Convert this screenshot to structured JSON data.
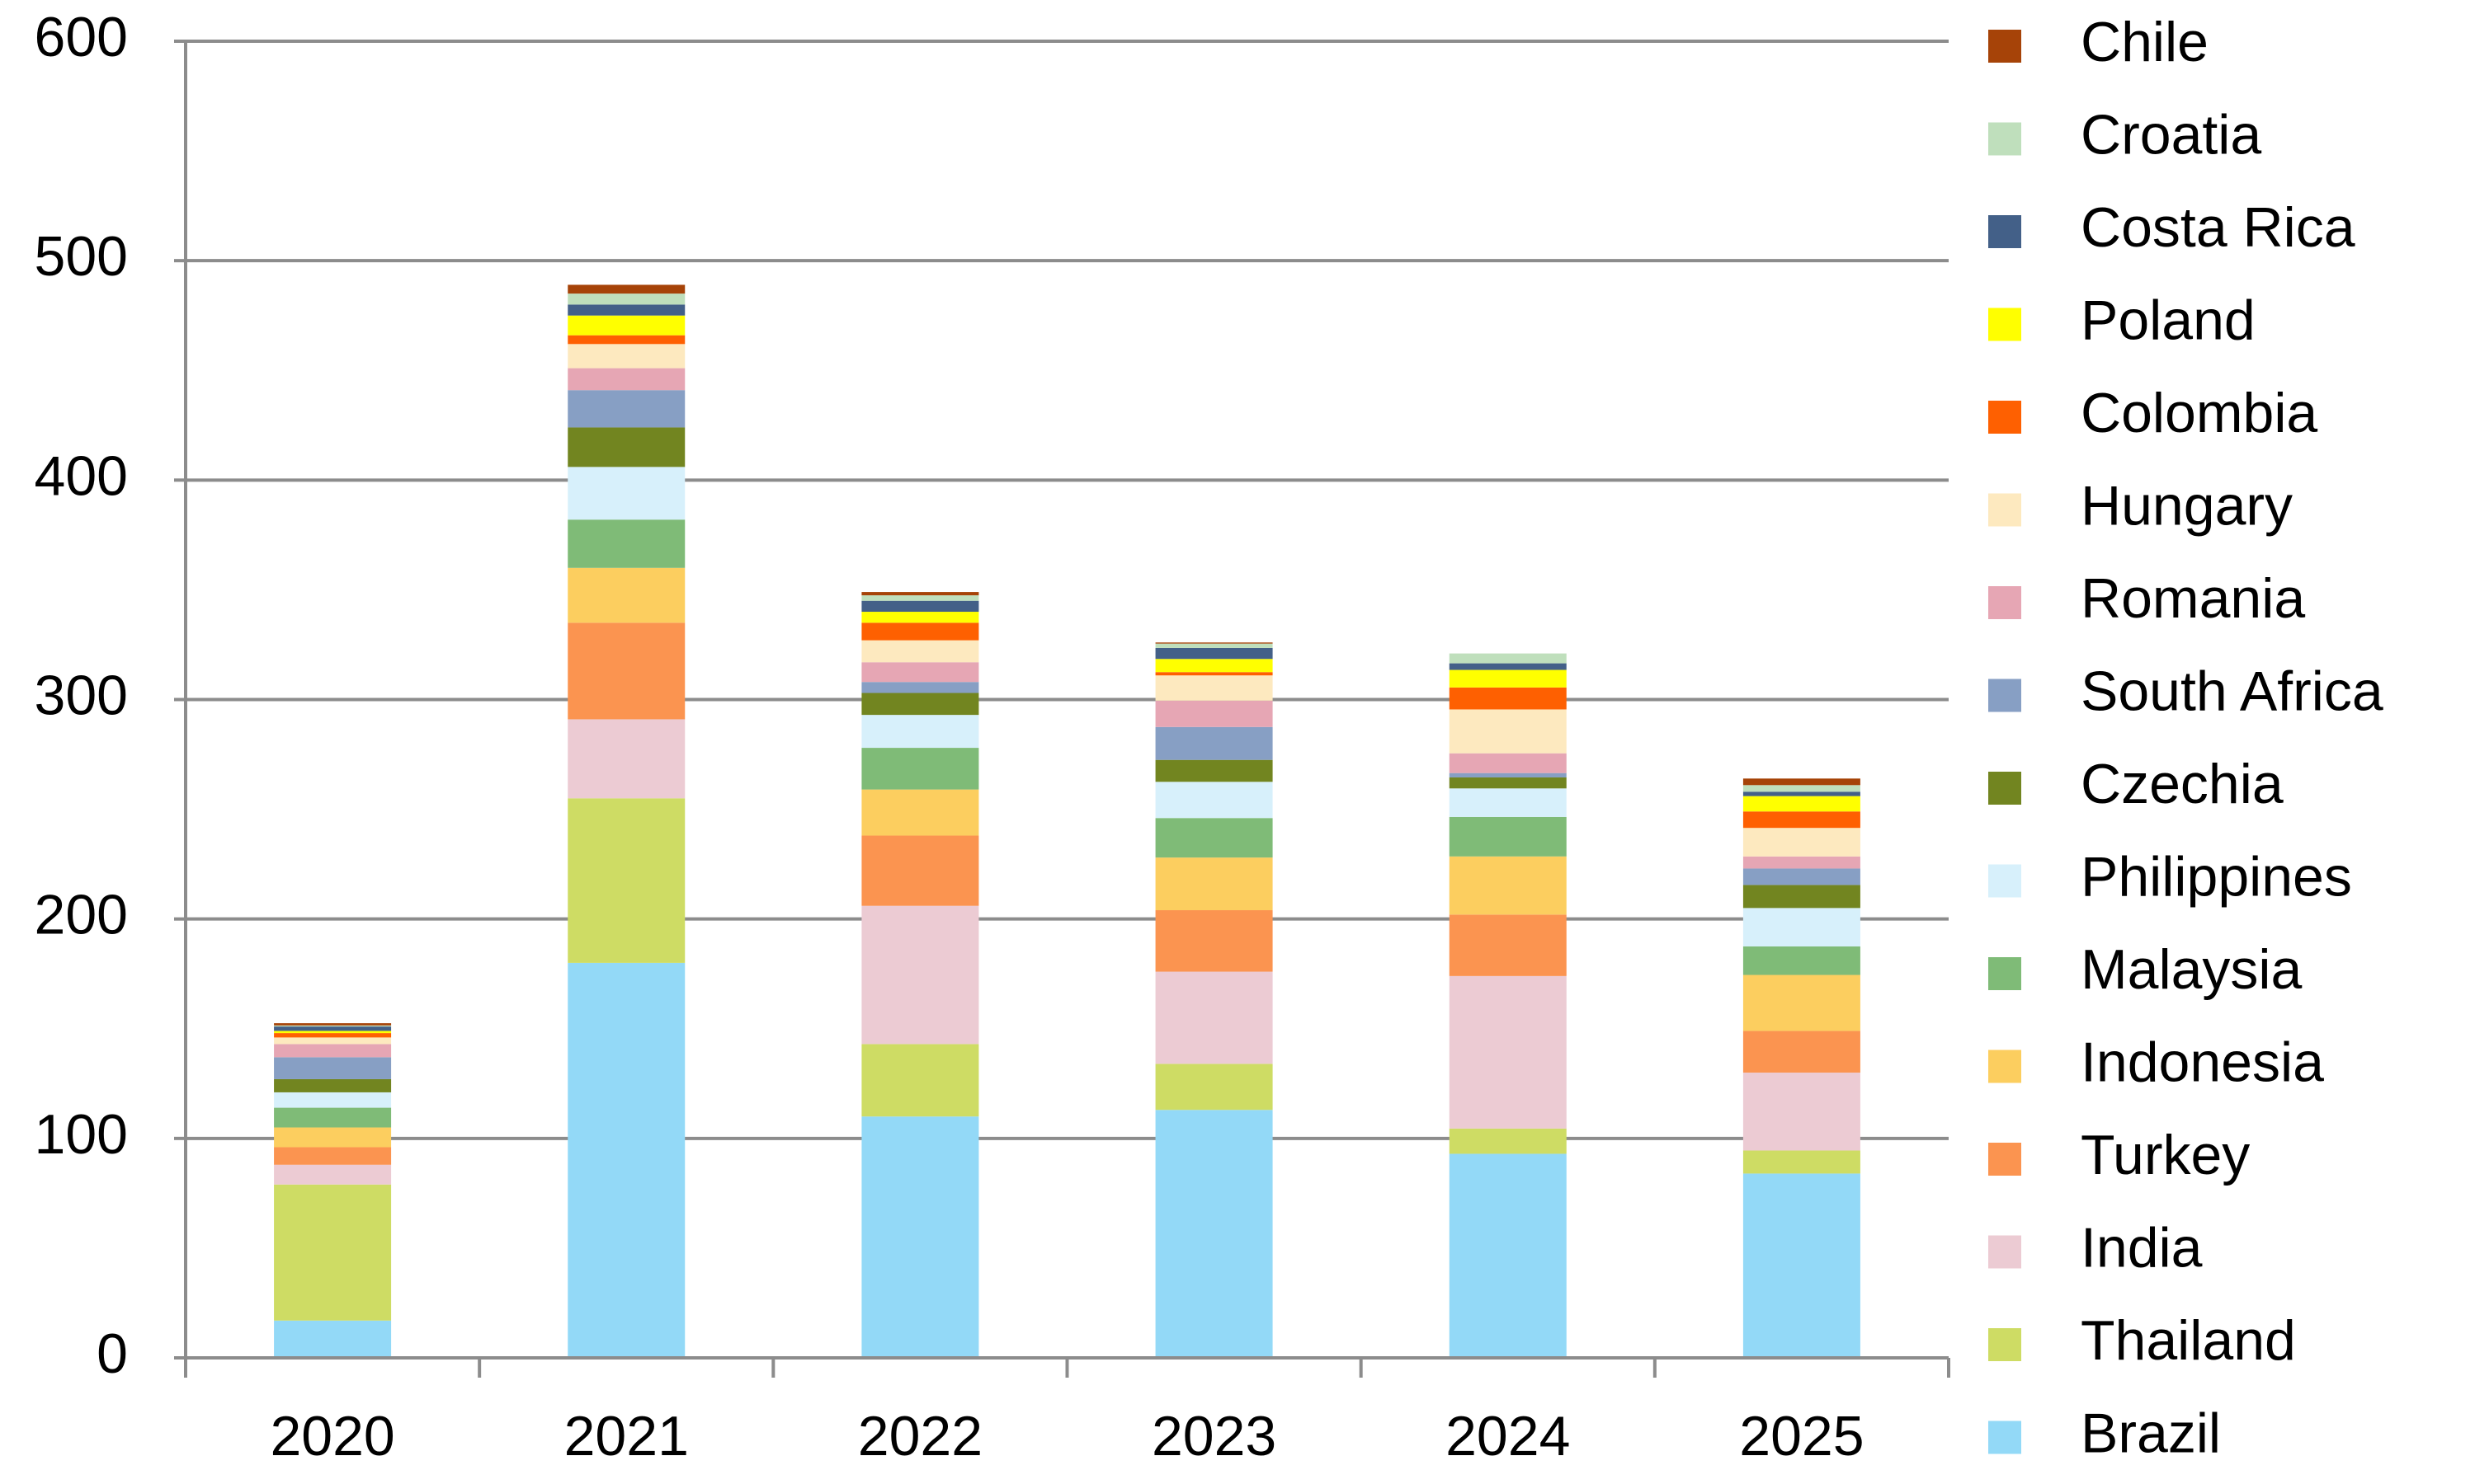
{
  "chart_data": {
    "type": "stacked_bar",
    "categories": [
      "2020",
      "2021",
      "2022",
      "2023",
      "2024",
      "2025"
    ],
    "series": [
      {
        "name": "Brazil",
        "color": "#93d9f7",
        "values": [
          17,
          180,
          110,
          113,
          93,
          84
        ]
      },
      {
        "name": "Thailand",
        "color": "#cedc64",
        "values": [
          62,
          75,
          33,
          21,
          11.5,
          10.5
        ]
      },
      {
        "name": "India",
        "color": "#eccbd3",
        "values": [
          9,
          36,
          63,
          42,
          69.5,
          35.5
        ]
      },
      {
        "name": "Turkey",
        "color": "#fb9450",
        "values": [
          8,
          44,
          32,
          28,
          28,
          19
        ]
      },
      {
        "name": "Indonesia",
        "color": "#fcce5f",
        "values": [
          9,
          25,
          21,
          24,
          26.5,
          25.5
        ]
      },
      {
        "name": "Malaysia",
        "color": "#7fbb77",
        "values": [
          9,
          22,
          19,
          18,
          18,
          13
        ]
      },
      {
        "name": "Philippines",
        "color": "#d7f0fb",
        "values": [
          7,
          24,
          15,
          16.5,
          13,
          17.5
        ]
      },
      {
        "name": "Czechia",
        "color": "#728520",
        "values": [
          6,
          18,
          10,
          10,
          5,
          10.5
        ]
      },
      {
        "name": "South Africa",
        "color": "#879fc4",
        "values": [
          10,
          17,
          5,
          15,
          2,
          7.5
        ]
      },
      {
        "name": "Romania",
        "color": "#e6a6b4",
        "values": [
          6,
          10,
          9,
          12,
          9,
          5.5
        ]
      },
      {
        "name": "Hungary",
        "color": "#fde9bf",
        "values": [
          3,
          11,
          10,
          11.5,
          20,
          13
        ]
      },
      {
        "name": "Colombia",
        "color": "#fe6001",
        "values": [
          2,
          4,
          8,
          1.5,
          10,
          7.5
        ]
      },
      {
        "name": "Poland",
        "color": "#ffff00",
        "values": [
          1,
          9,
          5,
          6,
          8,
          7
        ]
      },
      {
        "name": "Costa Rica",
        "color": "#436088",
        "values": [
          2,
          5,
          5,
          5,
          3,
          2
        ]
      },
      {
        "name": "Croatia",
        "color": "#bfdfbc",
        "values": [
          0.5,
          5,
          2.5,
          2,
          4.5,
          3
        ]
      },
      {
        "name": "Chile",
        "color": "#a64308",
        "values": [
          1,
          4,
          1.5,
          0.5,
          0,
          3
        ]
      }
    ],
    "ylim": [
      0,
      600
    ],
    "yticks": [
      0,
      100,
      200,
      300,
      400,
      500,
      600
    ],
    "grid": true,
    "legend": "right"
  }
}
